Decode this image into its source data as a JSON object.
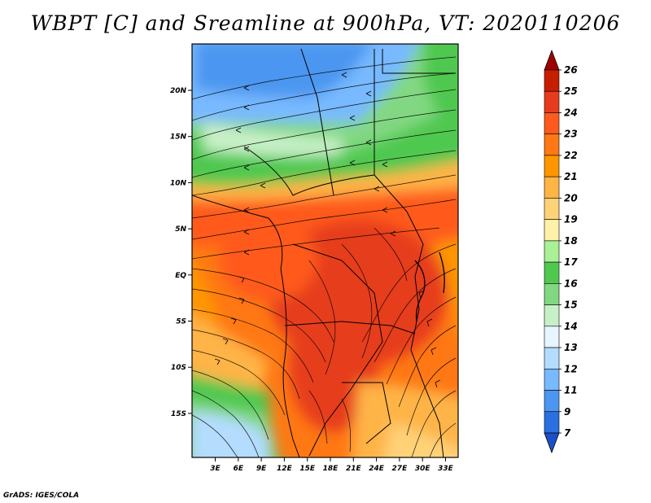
{
  "title": "WBPT [C] and Sreamline at 900hPa, VT: 2020110206",
  "footer": "GrADS: IGES/COLA",
  "map": {
    "lat_ticks": [
      "20N",
      "15N",
      "10N",
      "5N",
      "EQ",
      "5S",
      "10S",
      "15S"
    ],
    "lon_ticks": [
      "3E",
      "6E",
      "9E",
      "12E",
      "15E",
      "18E",
      "21E",
      "24E",
      "27E",
      "30E",
      "33E"
    ]
  },
  "colorbar": {
    "labels": [
      "26",
      "25",
      "24",
      "23",
      "22",
      "21",
      "20",
      "19",
      "18",
      "17",
      "16",
      "15",
      "14",
      "13",
      "12",
      "11",
      "9",
      "7"
    ],
    "colors": [
      "#a00000",
      "#c81e00",
      "#e63c1e",
      "#ff5a1e",
      "#ff7814",
      "#ff9600",
      "#ffb446",
      "#ffd278",
      "#fff0aa",
      "#aaf096",
      "#50c850",
      "#82d882",
      "#c8f0c8",
      "#e6f5ff",
      "#b4dcff",
      "#78b9ff",
      "#4b96f0",
      "#2b70e0",
      "#1f4fc8"
    ]
  }
}
